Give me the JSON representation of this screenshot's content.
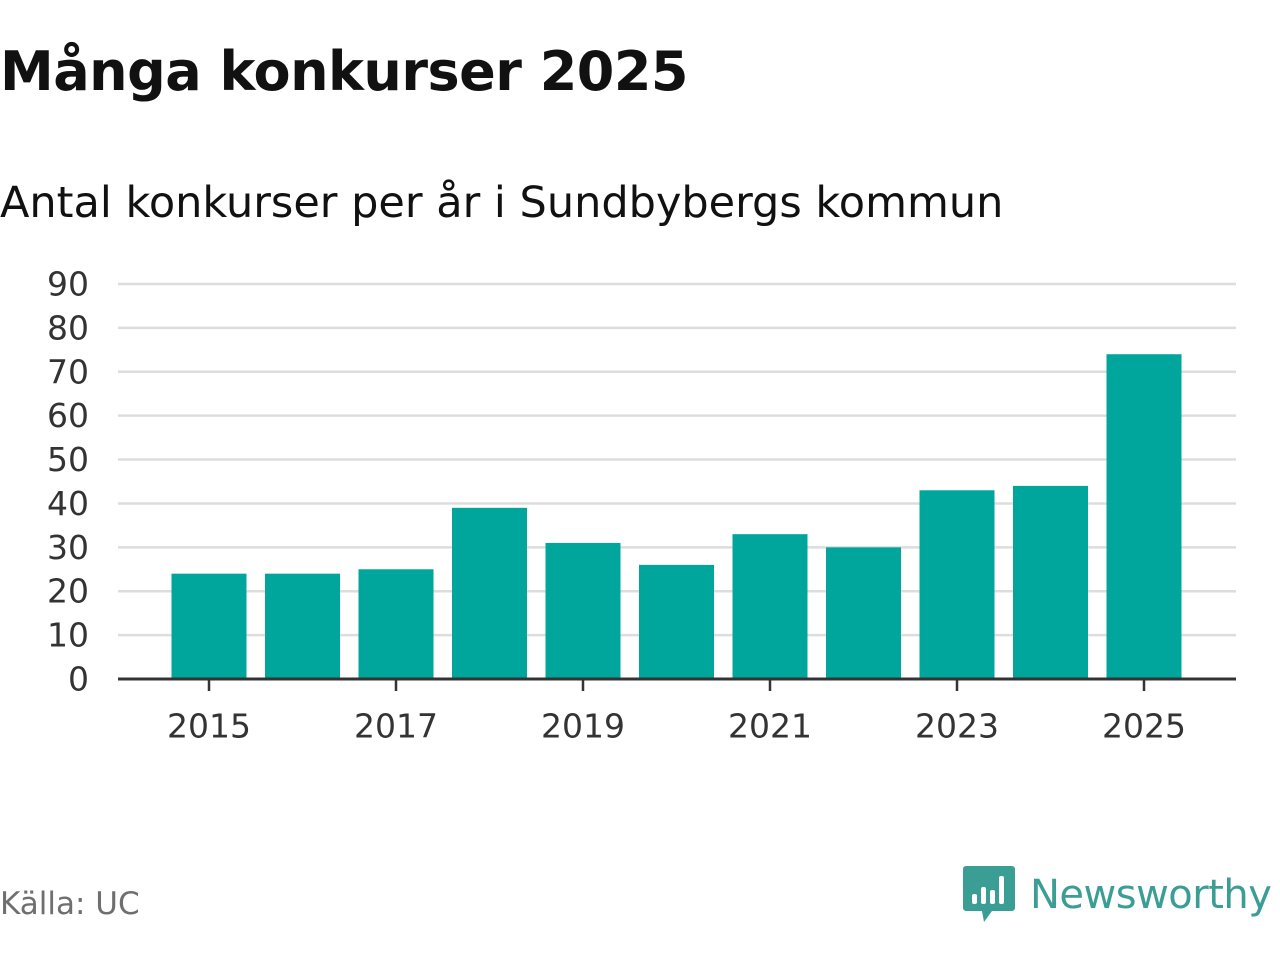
{
  "title": "Många konkurser 2025",
  "subtitle": "Antal konkurser per år i Sundbybergs kommun",
  "source": "Källa: UC",
  "logo": {
    "text": "Newsworthy",
    "icon": "newsworthy-logo-icon"
  },
  "colors": {
    "bar": "#00a59b",
    "grid": "#dddddd",
    "axis": "#333333",
    "text": "#111111",
    "brand": "#3a9e94"
  },
  "chart_data": {
    "type": "bar",
    "categories": [
      "2015",
      "2016",
      "2017",
      "2018",
      "2019",
      "2020",
      "2021",
      "2022",
      "2023",
      "2024",
      "2025"
    ],
    "values": [
      24,
      24,
      25,
      39,
      31,
      26,
      33,
      30,
      43,
      44,
      74
    ],
    "xtick_labels": [
      "2015",
      "2017",
      "2019",
      "2021",
      "2023",
      "2025"
    ],
    "ytick_labels": [
      "0",
      "10",
      "20",
      "30",
      "40",
      "50",
      "60",
      "70",
      "80",
      "90"
    ],
    "ylim": [
      0,
      90
    ],
    "grid": true,
    "legend": false
  }
}
